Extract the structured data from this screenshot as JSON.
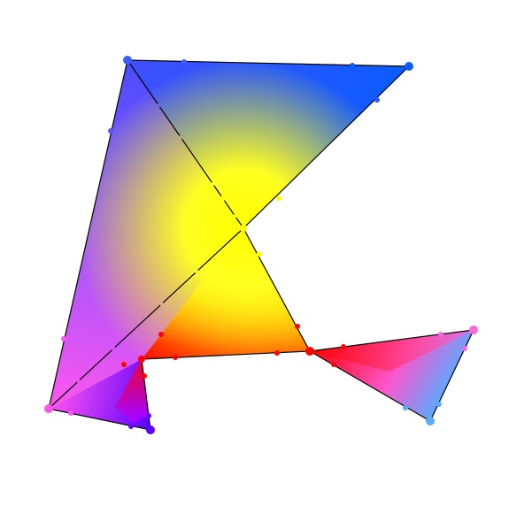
{
  "diagram": {
    "kind": "gradient-mesh",
    "colors": {
      "blue": "#3c5cff",
      "bright_blue": "#0a5cff",
      "violet": "#9a55ff",
      "magenta": "#ff55ee",
      "pink": "#ff66cc",
      "yellow": "#ffff00",
      "red": "#ff0000",
      "deep_violet": "#6a00ff",
      "sky_blue": "#5aaaff",
      "outline": "#000000"
    }
  }
}
